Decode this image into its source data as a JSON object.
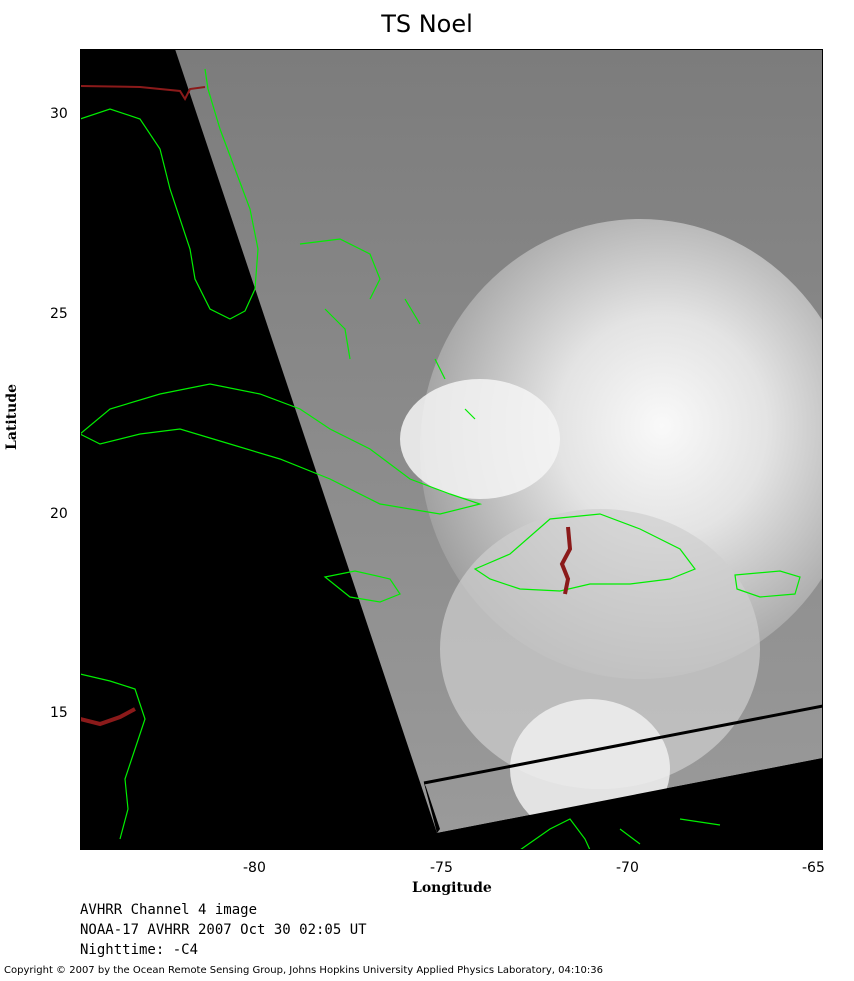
{
  "title": "TS Noel",
  "axes": {
    "xlabel": "Longitude",
    "ylabel": "Latitude",
    "xticks": [
      "-80",
      "-75",
      "-70",
      "-65"
    ],
    "yticks": [
      "30",
      "25",
      "20",
      "15"
    ]
  },
  "info": {
    "line1": "AVHRR Channel 4 image",
    "line2": "NOAA-17 AVHRR 2007 Oct 30 02:05 UT",
    "line3": "Nighttime: -C4"
  },
  "copyright": "Copyright © 2007 by the Ocean Remote Sensing Group, Johns Hopkins University Applied Physics Laboratory, 04:10:36",
  "colors": {
    "coastline": "#00ee00",
    "border": "#8b1a1a",
    "background": "#000000",
    "cloud": "#ffffff",
    "sea": "#8a8a8a"
  }
}
